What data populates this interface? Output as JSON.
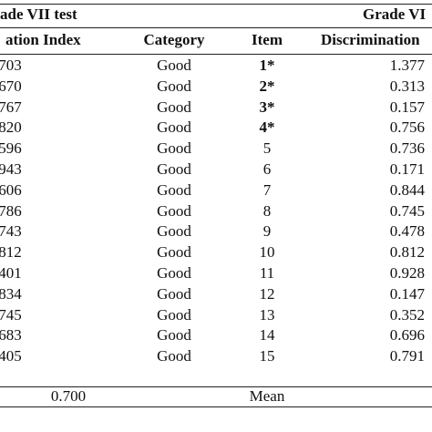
{
  "table": {
    "group_left": "ade VII test",
    "group_right": "Grade  VI",
    "columns": {
      "disc_index_left": "ation Index",
      "category": "Category",
      "item": "Item",
      "disc_index_right": "Discrimination"
    },
    "rows": [
      {
        "left": ".703",
        "category": "Good",
        "item": "1*",
        "right": "1.377",
        "bold_item": true
      },
      {
        "left": ".670",
        "category": "Good",
        "item": "2*",
        "right": "0.313",
        "bold_item": true
      },
      {
        "left": ".767",
        "category": "Good",
        "item": "3*",
        "right": "0.157",
        "bold_item": true
      },
      {
        "left": ".820",
        "category": "Good",
        "item": "4*",
        "right": "0.756",
        "bold_item": true
      },
      {
        "left": ".596",
        "category": "Good",
        "item": "5",
        "right": "0.736",
        "bold_item": false
      },
      {
        "left": ".943",
        "category": "Good",
        "item": "6",
        "right": "0.171",
        "bold_item": false
      },
      {
        "left": ".606",
        "category": "Good",
        "item": "7",
        "right": "0.844",
        "bold_item": false
      },
      {
        "left": ".786",
        "category": "Good",
        "item": "8",
        "right": "0.745",
        "bold_item": false
      },
      {
        "left": ".743",
        "category": "Good",
        "item": "9",
        "right": "0.478",
        "bold_item": false
      },
      {
        "left": ".812",
        "category": "Good",
        "item": "10",
        "right": "0.812",
        "bold_item": false
      },
      {
        "left": ".401",
        "category": "Good",
        "item": "11",
        "right": "0.928",
        "bold_item": false
      },
      {
        "left": ".834",
        "category": "Good",
        "item": "12",
        "right": "0.147",
        "bold_item": false
      },
      {
        "left": ".745",
        "category": "Good",
        "item": "13",
        "right": "0.352",
        "bold_item": false
      },
      {
        "left": ".683",
        "category": "Good",
        "item": "14",
        "right": "0.696",
        "bold_item": false
      },
      {
        "left": ".405",
        "category": "Good",
        "item": "15",
        "right": "0.791",
        "bold_item": false
      }
    ],
    "mean_row": {
      "left_value": "0.700",
      "label": "Mean"
    }
  }
}
